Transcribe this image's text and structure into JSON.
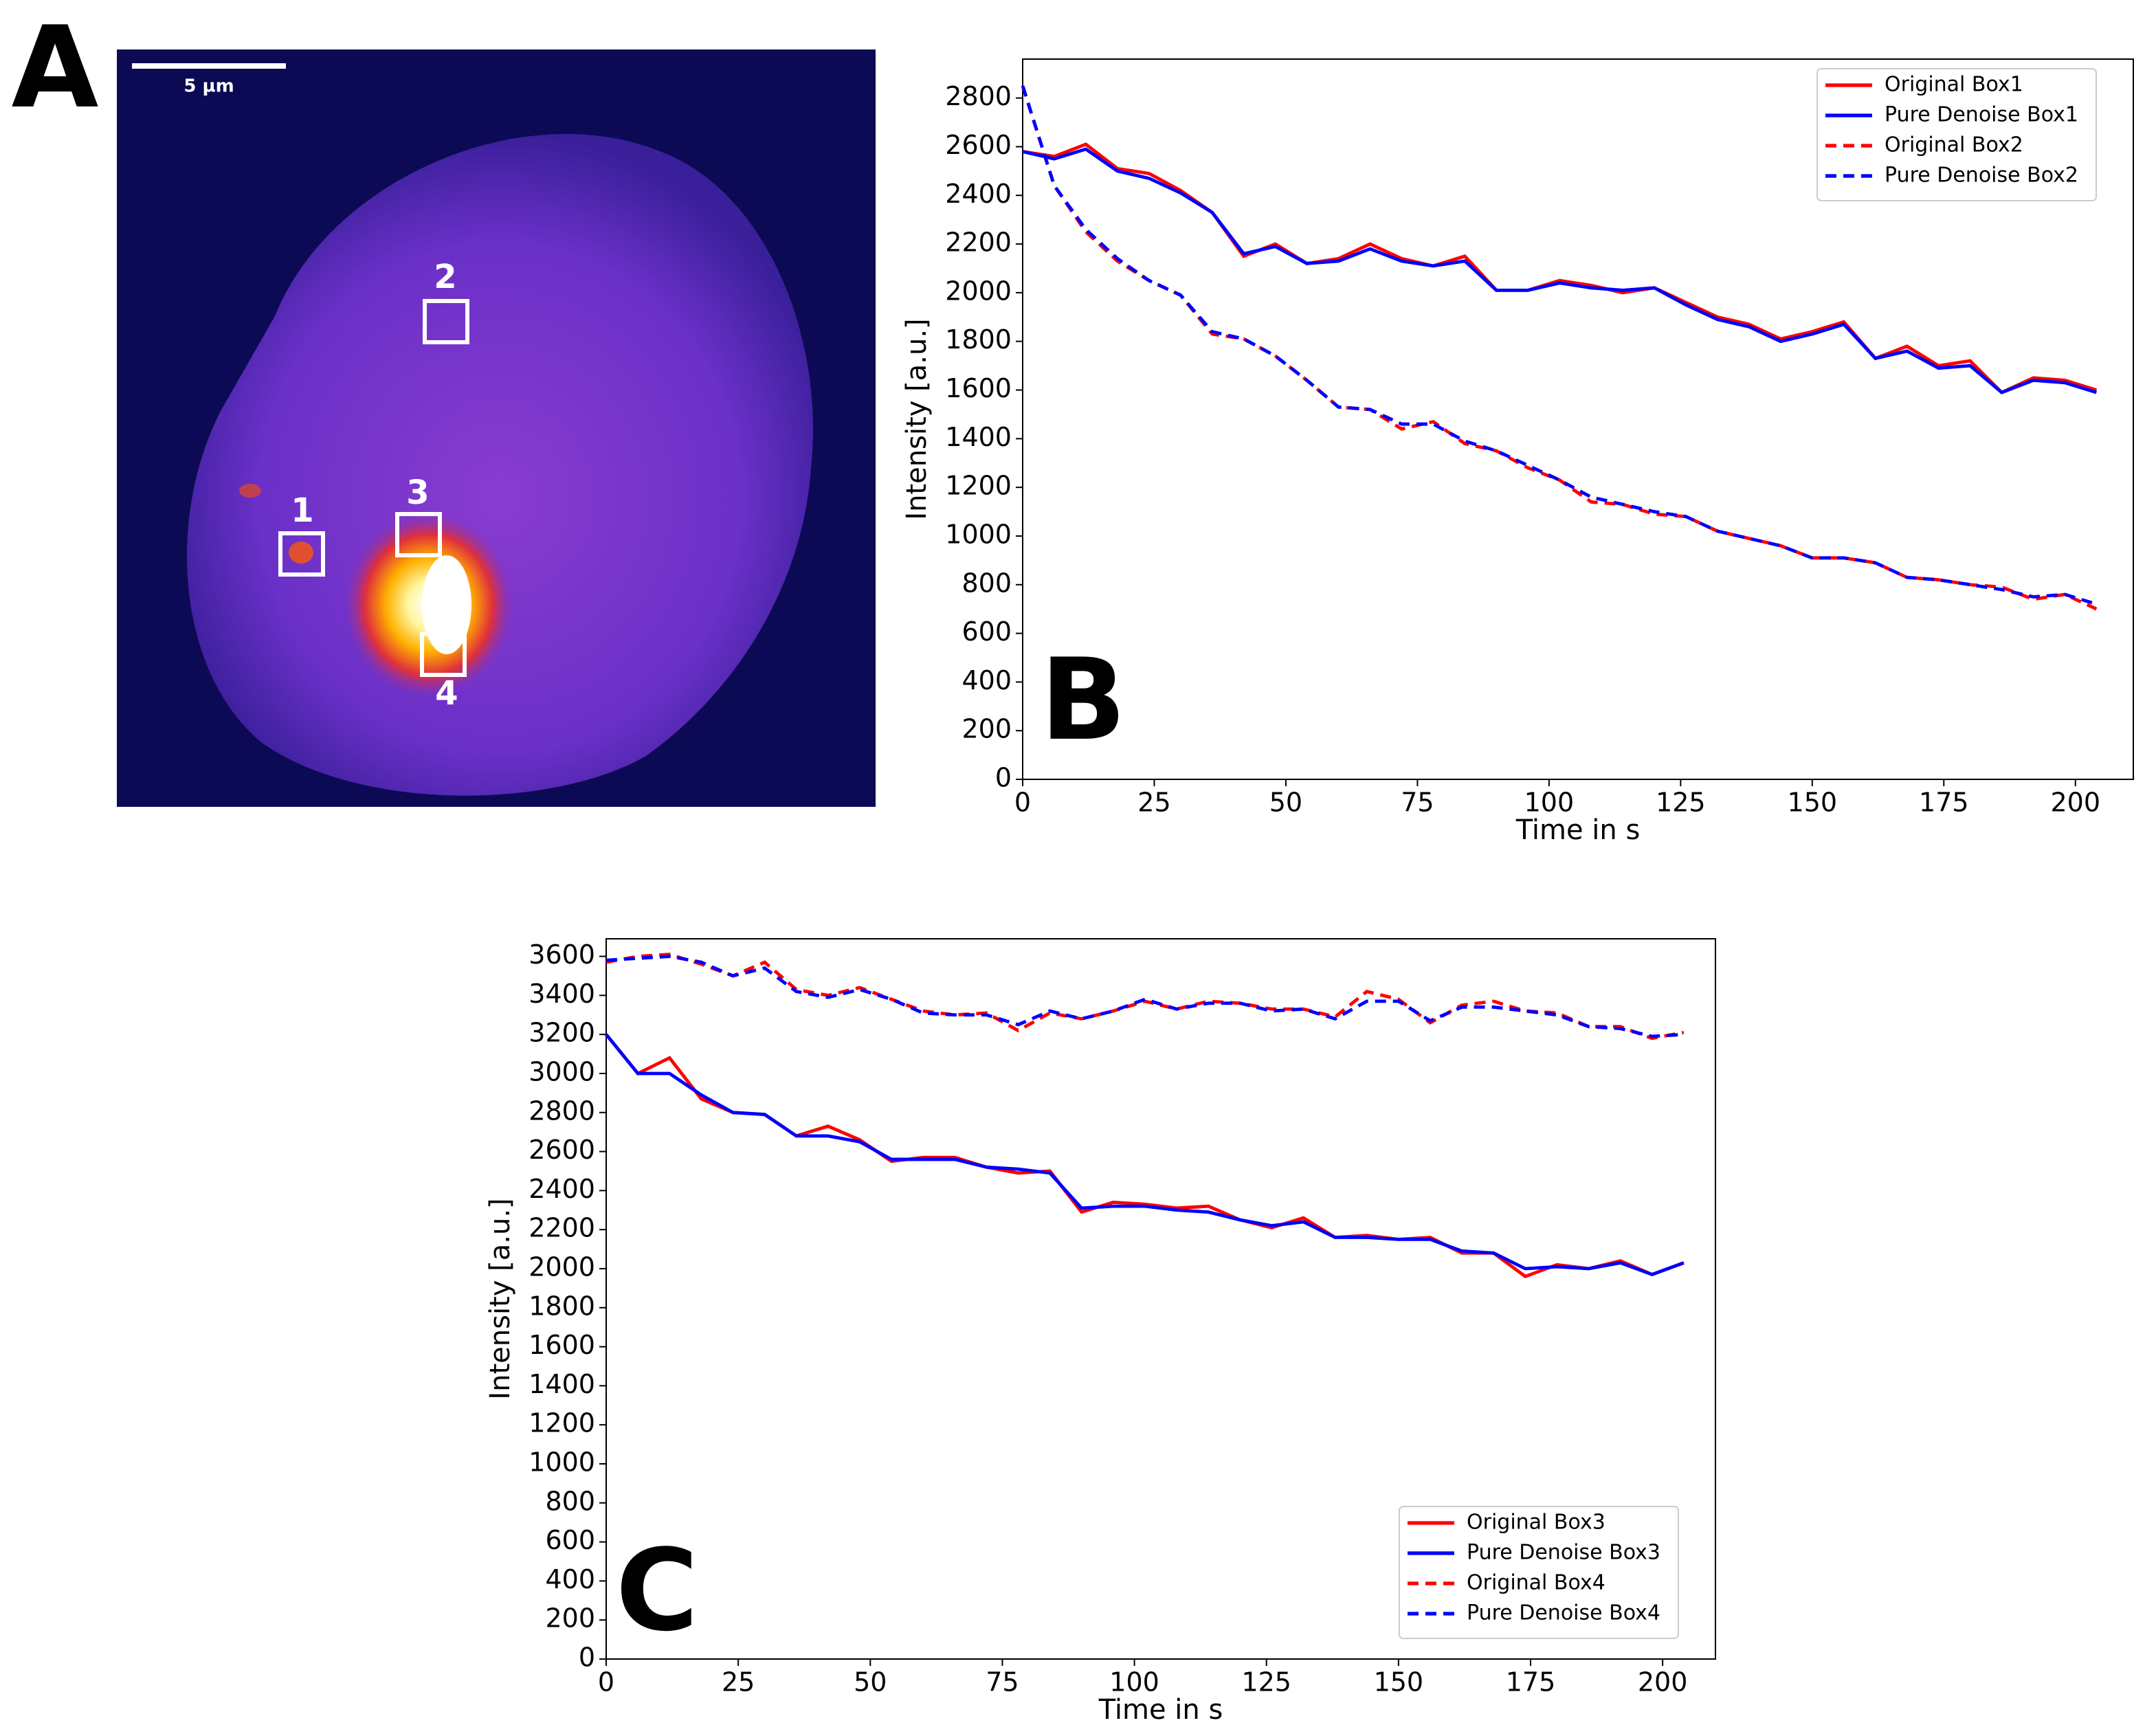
{
  "image_panel": {
    "panel_label": "A",
    "scale_bar": "5 µm",
    "boxes": [
      "1",
      "2",
      "3",
      "4"
    ]
  },
  "chart_data": [
    {
      "type": "line",
      "panel_label": "B",
      "xlabel": "Time in s",
      "ylabel": "Intensity [a.u.]",
      "x": [
        0,
        6,
        12,
        18,
        24,
        30,
        36,
        42,
        48,
        54,
        60,
        66,
        72,
        78,
        84,
        90,
        96,
        102,
        108,
        114,
        120,
        126,
        132,
        138,
        144,
        150,
        156,
        162,
        168,
        174,
        180,
        186,
        192,
        198,
        204
      ],
      "series": [
        {
          "name": "Original Box1",
          "color": "#ff0000",
          "linestyle": "solid",
          "values": [
            2580,
            2560,
            2610,
            2510,
            2490,
            2420,
            2330,
            2150,
            2200,
            2120,
            2140,
            2200,
            2140,
            2110,
            2150,
            2010,
            2010,
            2050,
            2030,
            2000,
            2020,
            1960,
            1900,
            1870,
            1810,
            1840,
            1880,
            1730,
            1780,
            1700,
            1720,
            1590,
            1650,
            1640,
            1600
          ]
        },
        {
          "name": "Pure Denoise Box1",
          "color": "#0000ff",
          "linestyle": "solid",
          "values": [
            2580,
            2550,
            2590,
            2500,
            2470,
            2410,
            2330,
            2160,
            2190,
            2120,
            2130,
            2180,
            2130,
            2110,
            2130,
            2010,
            2010,
            2040,
            2020,
            2010,
            2020,
            1950,
            1890,
            1860,
            1800,
            1830,
            1870,
            1730,
            1760,
            1690,
            1700,
            1590,
            1640,
            1630,
            1590
          ]
        },
        {
          "name": "Original Box2",
          "color": "#ff0000",
          "linestyle": "dashed",
          "values": [
            2850,
            2440,
            2250,
            2130,
            2050,
            1990,
            1830,
            1810,
            1740,
            1640,
            1530,
            1520,
            1440,
            1470,
            1380,
            1350,
            1280,
            1230,
            1140,
            1130,
            1090,
            1080,
            1020,
            990,
            960,
            910,
            910,
            890,
            830,
            820,
            800,
            790,
            740,
            760,
            700
          ]
        },
        {
          "name": "Pure Denoise Box2",
          "color": "#0000ff",
          "linestyle": "dashed",
          "values": [
            2850,
            2440,
            2260,
            2140,
            2050,
            1990,
            1840,
            1810,
            1740,
            1640,
            1530,
            1520,
            1460,
            1460,
            1390,
            1350,
            1290,
            1230,
            1160,
            1130,
            1100,
            1080,
            1020,
            990,
            960,
            910,
            910,
            890,
            830,
            820,
            800,
            780,
            750,
            760,
            720
          ]
        }
      ],
      "xlim": [
        0,
        211
      ],
      "xticks": [
        0,
        25,
        50,
        75,
        100,
        125,
        150,
        175,
        200
      ],
      "ylim": [
        0,
        2960
      ],
      "yticks": [
        0,
        200,
        400,
        600,
        800,
        1000,
        1200,
        1400,
        1600,
        1800,
        2000,
        2200,
        2400,
        2600,
        2800
      ],
      "grid": false,
      "legend": "upper right"
    },
    {
      "type": "line",
      "panel_label": "C",
      "xlabel": "Time in s",
      "ylabel": "Intensity [a.u.]",
      "x": [
        0,
        6,
        12,
        18,
        24,
        30,
        36,
        42,
        48,
        54,
        60,
        66,
        72,
        78,
        84,
        90,
        96,
        102,
        108,
        114,
        120,
        126,
        132,
        138,
        144,
        150,
        156,
        162,
        168,
        174,
        180,
        186,
        192,
        198,
        204
      ],
      "series": [
        {
          "name": "Original Box3",
          "color": "#ff0000",
          "linestyle": "solid",
          "values": [
            3200,
            3000,
            3080,
            2870,
            2800,
            2790,
            2680,
            2730,
            2660,
            2550,
            2570,
            2570,
            2520,
            2490,
            2500,
            2290,
            2340,
            2330,
            2310,
            2320,
            2250,
            2210,
            2260,
            2160,
            2170,
            2150,
            2160,
            2080,
            2080,
            1960,
            2020,
            2000,
            2040,
            1970,
            2030
          ]
        },
        {
          "name": "Pure Denoise Box3",
          "color": "#0000ff",
          "linestyle": "solid",
          "values": [
            3200,
            3000,
            3000,
            2890,
            2800,
            2790,
            2680,
            2680,
            2650,
            2560,
            2560,
            2560,
            2520,
            2510,
            2490,
            2310,
            2320,
            2320,
            2300,
            2290,
            2250,
            2220,
            2240,
            2160,
            2160,
            2150,
            2150,
            2090,
            2080,
            2000,
            2010,
            2000,
            2030,
            1970,
            2030
          ]
        },
        {
          "name": "Original Box4",
          "color": "#ff0000",
          "linestyle": "dashed",
          "values": [
            3570,
            3600,
            3610,
            3560,
            3500,
            3570,
            3430,
            3400,
            3440,
            3380,
            3320,
            3300,
            3310,
            3220,
            3310,
            3280,
            3320,
            3370,
            3330,
            3370,
            3360,
            3330,
            3330,
            3290,
            3420,
            3380,
            3260,
            3350,
            3370,
            3320,
            3310,
            3240,
            3240,
            3180,
            3210
          ]
        },
        {
          "name": "Pure Denoise Box4",
          "color": "#0000ff",
          "linestyle": "dashed",
          "values": [
            3580,
            3590,
            3600,
            3570,
            3500,
            3540,
            3420,
            3390,
            3430,
            3380,
            3310,
            3300,
            3300,
            3250,
            3320,
            3280,
            3320,
            3380,
            3330,
            3360,
            3360,
            3320,
            3330,
            3280,
            3370,
            3370,
            3270,
            3340,
            3340,
            3320,
            3300,
            3240,
            3230,
            3190,
            3200
          ]
        }
      ],
      "xlim": [
        0,
        210
      ],
      "xticks": [
        0,
        25,
        50,
        75,
        100,
        125,
        150,
        175,
        200
      ],
      "ylim": [
        0,
        3690
      ],
      "yticks": [
        0,
        200,
        400,
        600,
        800,
        1000,
        1200,
        1400,
        1600,
        1800,
        2000,
        2200,
        2400,
        2600,
        2800,
        3000,
        3200,
        3400,
        3600
      ],
      "grid": false,
      "legend": "lower right"
    }
  ]
}
